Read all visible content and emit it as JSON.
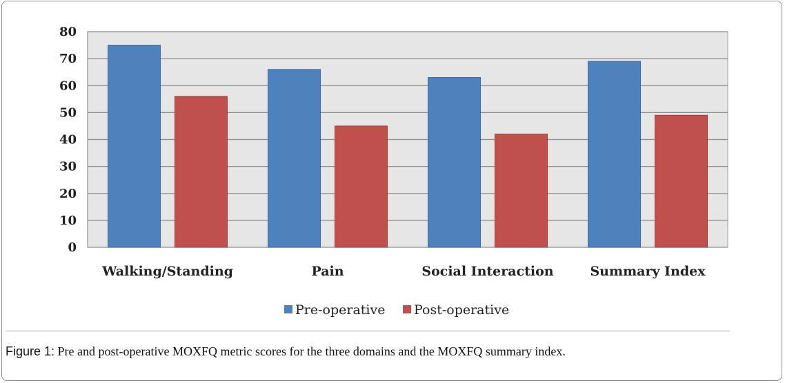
{
  "chart_data": {
    "type": "bar",
    "categories": [
      "Walking/Standing",
      "Pain",
      "Social Interaction",
      "Summary Index"
    ],
    "series": [
      {
        "name": "Pre-operative",
        "values": [
          75,
          66,
          63,
          69
        ],
        "color": "#4f81bd"
      },
      {
        "name": "Post-operative",
        "values": [
          56,
          45,
          42,
          49
        ],
        "color": "#c0504d"
      }
    ],
    "ylim": [
      0,
      80
    ],
    "yticks": [
      0,
      10,
      20,
      30,
      40,
      50,
      60,
      70,
      80
    ],
    "grid": true,
    "legend_position": "bottom",
    "plot_background": "#e6e6e6"
  },
  "caption": {
    "label": "Figure 1:",
    "text": " Pre and post-operative MOXFQ metric scores for the three domains and the MOXFQ summary index."
  }
}
